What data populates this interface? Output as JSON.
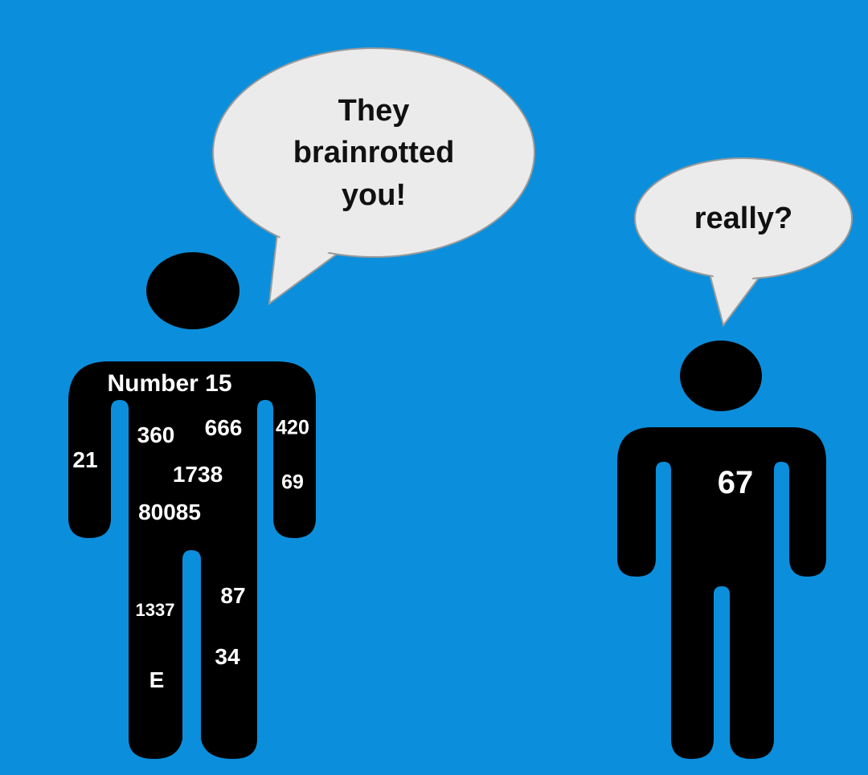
{
  "colors": {
    "background": "#0b8fdc",
    "figure": "#000000",
    "bubble": "#ebebeb",
    "bubble_border": "#9a9a9a",
    "label": "#ffffff"
  },
  "left_speech_bubble": {
    "lines": [
      "They",
      "brainrotted",
      "you!"
    ]
  },
  "right_speech_bubble": {
    "text": "really?"
  },
  "left_figure": {
    "labels": [
      "Number 15",
      "360",
      "666",
      "420",
      "21",
      "1738",
      "69",
      "80085",
      "1337",
      "87",
      "34",
      "E"
    ]
  },
  "right_figure": {
    "label": "67"
  }
}
